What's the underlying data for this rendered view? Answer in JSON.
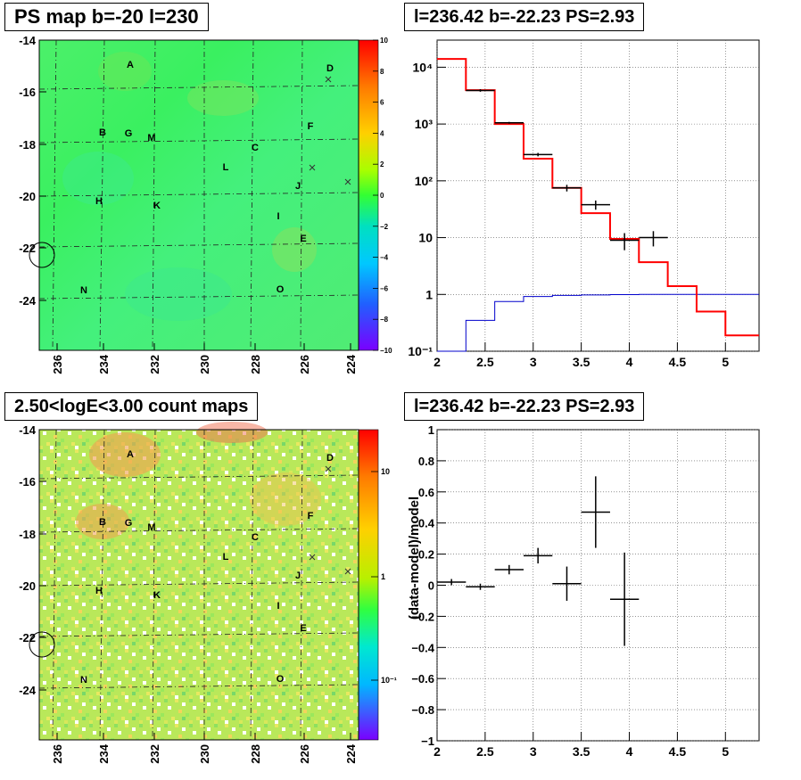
{
  "panels": {
    "psmap_title": "PS map b=-20 l=230",
    "spectrum_title": "l=236.42 b=-22.23 PS=2.93",
    "countmap_title": "2.50<logE<3.00 count maps",
    "residual_title": "l=236.42 b=-22.23 PS=2.93"
  },
  "sky_maps": {
    "x_ticks": [
      "236",
      "234",
      "232",
      "230",
      "228",
      "226",
      "224"
    ],
    "y_ticks": [
      "-14",
      "-16",
      "-18",
      "-20",
      "-22",
      "-24"
    ],
    "sources": [
      "A",
      "B",
      "G",
      "M",
      "C",
      "D",
      "F",
      "L",
      "J",
      "H",
      "K",
      "I",
      "E",
      "N",
      "O"
    ],
    "ps_colorbar_ticks": [
      "10",
      "8",
      "6",
      "4",
      "2",
      "0",
      "−2",
      "−4",
      "−6",
      "−8",
      "−10"
    ],
    "count_colorbar_ticks": [
      "10",
      "1",
      "10⁻¹"
    ]
  },
  "chart_data": [
    {
      "type": "line",
      "panel": "spectrum",
      "xlim": [
        2,
        5.35
      ],
      "ylim": [
        0.1,
        30000
      ],
      "log_y": true,
      "grid": true,
      "x_ticks": [
        "2",
        "2.5",
        "3",
        "3.5",
        "4",
        "4.5",
        "5"
      ],
      "y_ticks": [
        "10⁻¹",
        "1",
        "10",
        "10²",
        "10³",
        "10⁴"
      ],
      "series": [
        {
          "role": "data",
          "x": [
            2.45,
            2.75,
            3.05,
            3.35,
            3.65,
            3.95,
            4.25
          ],
          "y": [
            3900,
            1050,
            290,
            75,
            38,
            9,
            10
          ],
          "y_err": [
            200,
            40,
            20,
            10,
            7,
            3,
            3
          ]
        },
        {
          "role": "model",
          "edges": [
            2.0,
            2.3,
            2.6,
            2.9,
            3.2,
            3.5,
            3.8,
            4.1,
            4.4,
            4.7,
            5.0,
            5.35
          ],
          "y": [
            14000,
            3950,
            1000,
            245,
            75,
            27,
            9.5,
            3.7,
            1.4,
            0.5,
            0.19
          ]
        },
        {
          "role": "background",
          "edges": [
            2.0,
            2.3,
            2.6,
            2.9,
            3.2,
            3.5,
            3.8,
            4.1,
            4.4,
            4.7,
            5.0,
            5.35
          ],
          "y": [
            0.05,
            0.35,
            0.75,
            0.92,
            0.96,
            0.98,
            0.99,
            1.0,
            1.0,
            1.0,
            1.0
          ]
        }
      ]
    },
    {
      "type": "scatter",
      "panel": "residual",
      "ylabel": "(data-model)/model",
      "xlim": [
        2,
        5.35
      ],
      "ylim": [
        -1,
        1
      ],
      "grid": true,
      "x_ticks": [
        "2",
        "2.5",
        "3",
        "3.5",
        "4",
        "4.5",
        "5"
      ],
      "y_ticks": [
        "−1",
        "−0.8",
        "−0.6",
        "−0.4",
        "−0.2",
        "0",
        "0.2",
        "0.4",
        "0.6",
        "0.8",
        "1"
      ],
      "x": [
        2.15,
        2.45,
        2.75,
        3.05,
        3.35,
        3.65,
        3.95
      ],
      "y": [
        0.02,
        -0.01,
        0.1,
        0.19,
        0.01,
        0.47,
        -0.09
      ],
      "y_err": [
        0.02,
        0.02,
        0.03,
        0.05,
        0.11,
        0.23,
        0.3
      ]
    }
  ]
}
